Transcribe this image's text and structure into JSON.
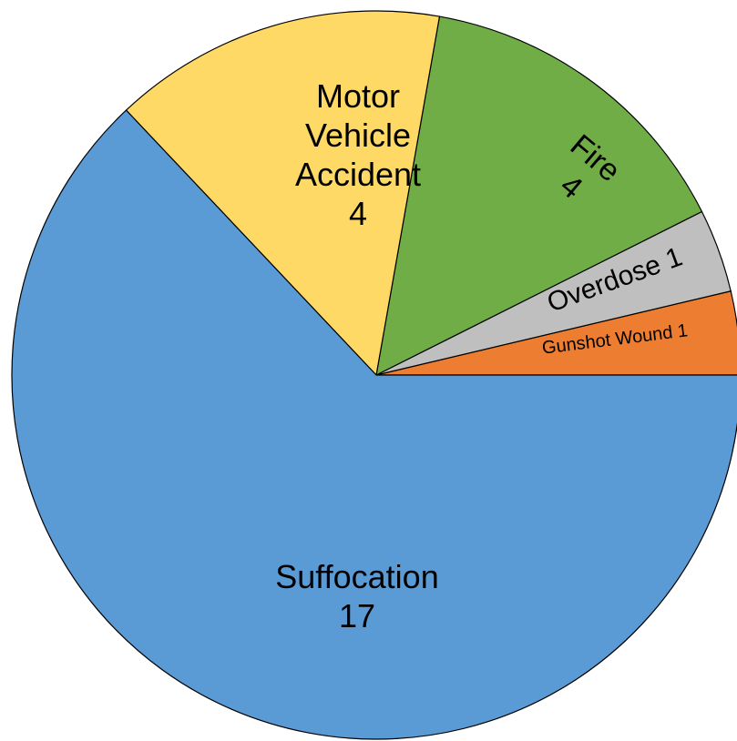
{
  "chart_data": {
    "type": "pie",
    "categories": [
      "Gunshot Wound",
      "Overdose",
      "Fire",
      "Motor Vehicle Accident",
      "Suffocation"
    ],
    "values": [
      1,
      1,
      4,
      4,
      17
    ],
    "colors": [
      "#ed7d31",
      "#bfbfbf",
      "#70ad47",
      "#ffd966",
      "#5b9bd5"
    ]
  }
}
